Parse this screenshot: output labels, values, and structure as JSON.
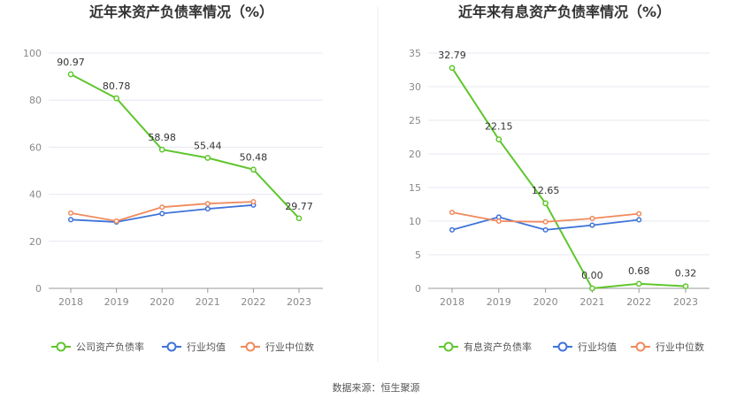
{
  "footer": {
    "source": "数据来源：恒生聚源"
  },
  "colors": {
    "green": "#5fc62e",
    "blue": "#3f73d8",
    "orange": "#f08a5d",
    "grid": "#e6e8f0",
    "axis": "#999999"
  },
  "chart_data": [
    {
      "type": "line",
      "title": "近年来资产负债率情况（%）",
      "xlabel": "",
      "ylabel": "",
      "categories": [
        "2018",
        "2019",
        "2020",
        "2021",
        "2022",
        "2023"
      ],
      "ylim": [
        0,
        100
      ],
      "yticks": [
        0,
        20,
        40,
        60,
        80,
        100
      ],
      "grid": true,
      "legend_position": "bottom",
      "series": [
        {
          "name": "公司资产负债率",
          "color": "#5fc62e",
          "labeled": true,
          "values": [
            90.97,
            80.78,
            58.98,
            55.44,
            50.48,
            29.77
          ],
          "labels": [
            "90.97",
            "80.78",
            "58.98",
            "55.44",
            "50.48",
            "29.77"
          ]
        },
        {
          "name": "行业均值",
          "color": "#3f73d8",
          "labeled": false,
          "values": [
            29.2,
            28.2,
            31.8,
            33.8,
            35.4,
            null
          ]
        },
        {
          "name": "行业中位数",
          "color": "#f08a5d",
          "labeled": false,
          "values": [
            32.0,
            28.6,
            34.5,
            36.0,
            36.8,
            null
          ]
        }
      ]
    },
    {
      "type": "line",
      "title": "近年来有息资产负债率情况（%）",
      "xlabel": "",
      "ylabel": "",
      "categories": [
        "2018",
        "2019",
        "2020",
        "2021",
        "2022",
        "2023"
      ],
      "ylim": [
        0,
        35
      ],
      "yticks": [
        0,
        5,
        10,
        15,
        20,
        25,
        30,
        35
      ],
      "grid": true,
      "legend_position": "bottom",
      "series": [
        {
          "name": "有息资产负债率",
          "color": "#5fc62e",
          "labeled": true,
          "values": [
            32.79,
            22.15,
            12.65,
            0.0,
            0.68,
            0.32
          ],
          "labels": [
            "32.79",
            "22.15",
            "12.65",
            "0.00",
            "0.68",
            "0.32"
          ]
        },
        {
          "name": "行业均值",
          "color": "#3f73d8",
          "labeled": false,
          "values": [
            8.7,
            10.6,
            8.7,
            9.4,
            10.2,
            null
          ]
        },
        {
          "name": "行业中位数",
          "color": "#f08a5d",
          "labeled": false,
          "values": [
            11.3,
            10.0,
            9.9,
            10.4,
            11.1,
            null
          ]
        }
      ]
    }
  ]
}
